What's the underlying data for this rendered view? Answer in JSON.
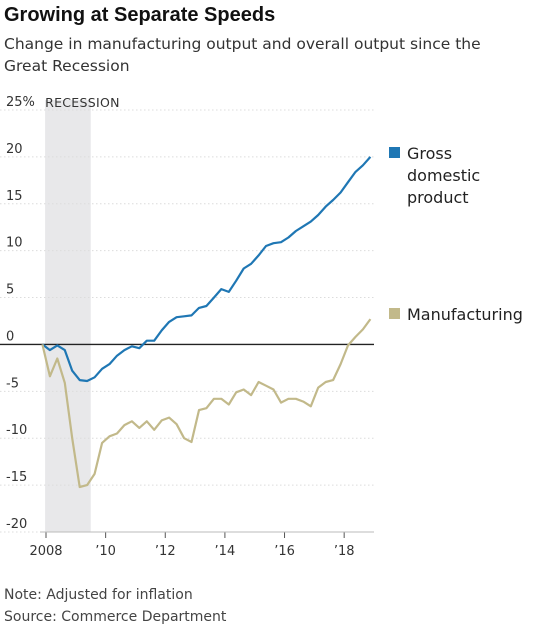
{
  "title": "Growing at Separate Speeds",
  "subtitle": "Change in manufacturing output and overall output since the Great Recession",
  "notes": [
    "Note: Adjusted for inflation",
    "Source: Commerce Department"
  ],
  "colors": {
    "gdp": "#1f77b4",
    "manufacturing": "#c2b98a",
    "recession": "#e8e8ea",
    "grid": "#dcdcdc",
    "zero": "#222222"
  },
  "chart_data": {
    "type": "line",
    "title": "Growing at Separate Speeds",
    "xlabel": "",
    "ylabel": "",
    "xlim": [
      2007.97,
      2018.9
    ],
    "ylim": [
      -20,
      25
    ],
    "grid": true,
    "legend_position": "right",
    "yticks": [
      {
        "value": 25,
        "label": "25%"
      },
      {
        "value": 20,
        "label": "20"
      },
      {
        "value": 15,
        "label": "15"
      },
      {
        "value": 10,
        "label": "10"
      },
      {
        "value": 5,
        "label": "5"
      },
      {
        "value": 0,
        "label": "0"
      },
      {
        "value": -5,
        "label": "-5"
      },
      {
        "value": -10,
        "label": "-10"
      },
      {
        "value": -15,
        "label": "-15"
      },
      {
        "value": -20,
        "label": "-20"
      }
    ],
    "xticks": [
      {
        "value": 2008,
        "label": "2008"
      },
      {
        "value": 2010,
        "label": "’10"
      },
      {
        "value": 2012,
        "label": "’12"
      },
      {
        "value": 2014,
        "label": "’14"
      },
      {
        "value": 2016,
        "label": "’16"
      },
      {
        "value": 2018,
        "label": "’18"
      }
    ],
    "shaded_regions": [
      {
        "label": "RECESSION",
        "x0": 2007.97,
        "x1": 2009.5
      }
    ],
    "series": [
      {
        "name": "Gross domestic product",
        "legend_lines": [
          "Gross",
          "domestic",
          "product"
        ],
        "color": "#1f77b4",
        "x": [
          2007.88,
          2008.13,
          2008.38,
          2008.63,
          2008.88,
          2009.13,
          2009.38,
          2009.63,
          2009.88,
          2010.13,
          2010.38,
          2010.63,
          2010.88,
          2011.13,
          2011.38,
          2011.63,
          2011.88,
          2012.13,
          2012.38,
          2012.63,
          2012.88,
          2013.13,
          2013.38,
          2013.63,
          2013.88,
          2014.13,
          2014.38,
          2014.63,
          2014.88,
          2015.13,
          2015.38,
          2015.63,
          2015.88,
          2016.13,
          2016.38,
          2016.63,
          2016.88,
          2017.13,
          2017.38,
          2017.63,
          2017.88,
          2018.13,
          2018.38,
          2018.63,
          2018.88
        ],
        "values": [
          0.0,
          -0.6,
          -0.1,
          -0.6,
          -2.8,
          -3.8,
          -3.9,
          -3.5,
          -2.6,
          -2.1,
          -1.2,
          -0.6,
          -0.2,
          -0.4,
          0.4,
          0.4,
          1.5,
          2.4,
          2.9,
          3.0,
          3.1,
          3.9,
          4.1,
          5.0,
          5.9,
          5.6,
          6.8,
          8.1,
          8.6,
          9.5,
          10.5,
          10.8,
          10.9,
          11.4,
          12.1,
          12.6,
          13.1,
          13.8,
          14.7,
          15.4,
          16.2,
          17.3,
          18.4,
          19.1,
          20.0
        ]
      },
      {
        "name": "Manufacturing",
        "legend_lines": [
          "Manufacturing"
        ],
        "color": "#c2b98a",
        "x": [
          2007.88,
          2008.13,
          2008.38,
          2008.63,
          2008.88,
          2009.13,
          2009.38,
          2009.63,
          2009.88,
          2010.13,
          2010.38,
          2010.63,
          2010.88,
          2011.13,
          2011.38,
          2011.63,
          2011.88,
          2012.13,
          2012.38,
          2012.63,
          2012.88,
          2013.13,
          2013.38,
          2013.63,
          2013.88,
          2014.13,
          2014.38,
          2014.63,
          2014.88,
          2015.13,
          2015.38,
          2015.63,
          2015.88,
          2016.13,
          2016.38,
          2016.63,
          2016.88,
          2017.13,
          2017.38,
          2017.63,
          2017.88,
          2018.13,
          2018.38,
          2018.63,
          2018.88
        ],
        "values": [
          0.0,
          -3.4,
          -1.5,
          -4.1,
          -10.0,
          -15.2,
          -15.0,
          -13.8,
          -10.5,
          -9.8,
          -9.5,
          -8.6,
          -8.2,
          -8.9,
          -8.2,
          -9.1,
          -8.1,
          -7.8,
          -8.5,
          -10.0,
          -10.4,
          -7.0,
          -6.8,
          -5.8,
          -5.8,
          -6.4,
          -5.1,
          -4.8,
          -5.4,
          -4.0,
          -4.4,
          -4.8,
          -6.2,
          -5.8,
          -5.8,
          -6.1,
          -6.6,
          -4.6,
          -4.0,
          -3.8,
          -2.1,
          -0.1,
          0.8,
          1.6,
          2.7
        ]
      }
    ]
  }
}
